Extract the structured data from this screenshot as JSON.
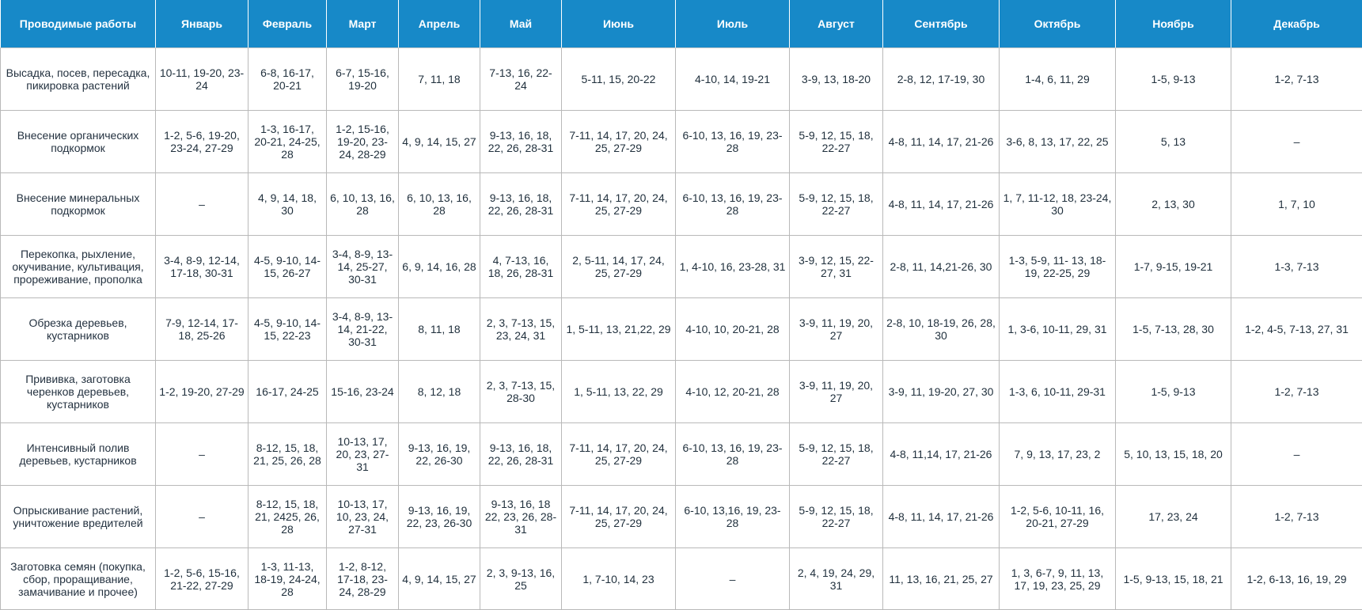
{
  "colors": {
    "header_bg": "#1789c8",
    "header_text": "#ffffff",
    "cell_text": "#1f2f3c",
    "grid": "#b9b9b9"
  },
  "table": {
    "headers": [
      "Проводимые работы",
      "Январь",
      "Февраль",
      "Март",
      "Апрель",
      "Май",
      "Июнь",
      "Июль",
      "Август",
      "Сентябрь",
      "Октябрь",
      "Ноябрь",
      "Декабрь"
    ],
    "rows": [
      [
        "Высадка, посев, пересадка, пикировка растений",
        "10-11, 19-20, 23-24",
        "6-8, 16-17, 20-21",
        "6-7, 15-16, 19-20",
        "7, 11, 18",
        "7-13, 16, 22-24",
        "5-11, 15, 20-22",
        "4-10, 14, 19-21",
        "3-9, 13, 18-20",
        "2-8, 12, 17-19, 30",
        "1-4, 6, 11, 29",
        "1-5, 9-13",
        "1-2, 7-13"
      ],
      [
        "Внесение органических подкормок",
        "1-2, 5-6, 19-20, 23-24, 27-29",
        "1-3, 16-17, 20-21, 24-25, 28",
        "1-2, 15-16, 19-20, 23-24, 28-29",
        "4, 9, 14, 15, 27",
        "9-13, 16, 18, 22, 26, 28-31",
        "7-11, 14, 17, 20, 24, 25, 27-29",
        "6-10, 13, 16, 19, 23-28",
        "5-9, 12, 15, 18, 22-27",
        "4-8, 11, 14, 17, 21-26",
        "3-6, 8, 13, 17, 22, 25",
        "5, 13",
        "–"
      ],
      [
        "Внесение минеральных подкормок",
        "–",
        "4, 9, 14, 18, 30",
        "6, 10, 13, 16, 28",
        "6, 10, 13, 16, 28",
        "9-13, 16, 18, 22, 26, 28-31",
        "7-11, 14, 17, 20, 24, 25, 27-29",
        "6-10, 13, 16, 19, 23-28",
        "5-9, 12, 15, 18, 22-27",
        "4-8, 11, 14, 17, 21-26",
        "1, 7, 11-12, 18, 23-24, 30",
        "2, 13, 30",
        "1, 7, 10"
      ],
      [
        "Перекопка, рыхление, окучивание, культивация, прореживание, прополка",
        "3-4, 8-9, 12-14, 17-18, 30-31",
        "4-5, 9-10, 14-15, 26-27",
        "3-4, 8-9, 13-14, 25-27, 30-31",
        "6, 9, 14, 16, 28",
        "4, 7-13, 16, 18, 26, 28-31",
        "2, 5-11, 14, 17, 24, 25, 27-29",
        "1, 4-10, 16, 23-28, 31",
        "3-9, 12, 15, 22-27, 31",
        "2-8, 11, 14,21-26, 30",
        "1-3, 5-9, 11- 13, 18-19, 22-25, 29",
        "1-7, 9-15, 19-21",
        "1-3, 7-13"
      ],
      [
        "Обрезка деревьев, кустарников",
        "7-9, 12-14, 17-18, 25-26",
        "4-5, 9-10, 14-15, 22-23",
        "3-4, 8-9, 13-14, 21-22, 30-31",
        "8, 11, 18",
        "2, 3, 7-13, 15, 23, 24, 31",
        "1, 5-11, 13, 21,22, 29",
        "4-10, 10, 20-21, 28",
        "3-9, 11, 19, 20, 27",
        "2-8, 10, 18-19, 26, 28, 30",
        "1, 3-6, 10-11, 29, 31",
        "1-5, 7-13, 28, 30",
        "1-2, 4-5, 7-13, 27, 31"
      ],
      [
        "Прививка, заготовка черенков деревьев, кустарников",
        "1-2, 19-20, 27-29",
        "16-17, 24-25",
        "15-16, 23-24",
        "8, 12, 18",
        "2, 3, 7-13, 15, 28-30",
        "1, 5-11, 13, 22, 29",
        "4-10, 12, 20-21, 28",
        "3-9, 11, 19, 20, 27",
        "3-9, 11, 19-20, 27, 30",
        "1-3, 6, 10-11, 29-31",
        "1-5, 9-13",
        "1-2, 7-13"
      ],
      [
        "Интенсивный полив деревьев, кустарников",
        "–",
        "8-12, 15, 18, 21, 25, 26, 28",
        "10-13, 17, 20, 23, 27-31",
        "9-13, 16, 19, 22, 26-30",
        "9-13, 16, 18, 22, 26, 28-31",
        "7-11, 14, 17, 20, 24, 25, 27-29",
        "6-10, 13, 16, 19, 23-28",
        "5-9, 12, 15, 18, 22-27",
        "4-8, 11,14, 17, 21-26",
        "7, 9, 13, 17, 23, 2",
        "5, 10, 13, 15, 18, 20",
        "–"
      ],
      [
        "Опрыскивание растений, уничтожение вредителей",
        "–",
        "8-12, 15, 18, 21, 2425, 26, 28",
        "10-13, 17, 10, 23, 24, 27-31",
        "9-13, 16, 19, 22, 23, 26-30",
        "9-13, 16, 18 22, 23, 26, 28-31",
        "7-11, 14, 17, 20, 24, 25, 27-29",
        "6-10, 13,16, 19, 23-28",
        "5-9, 12, 15, 18, 22-27",
        "4-8, 11, 14, 17, 21-26",
        "1-2, 5-6, 10-11, 16, 20-21, 27-29",
        "17, 23, 24",
        "1-2, 7-13"
      ],
      [
        "Заготовка семян (покупка, сбор, проращивание, замачивание и прочее)",
        "1-2, 5-6, 15-16, 21-22, 27-29",
        "1-3, 11-13, 18-19, 24-24, 28",
        "1-2, 8-12, 17-18, 23-24, 28-29",
        "4, 9, 14, 15, 27",
        "2, 3, 9-13, 16, 25",
        "1, 7-10, 14, 23",
        "–",
        "2, 4, 19, 24, 29, 31",
        "11, 13, 16, 21, 25, 27",
        "1, 3, 6-7, 9, 11, 13, 17, 19, 23, 25, 29",
        "1-5, 9-13, 15, 18, 21",
        "1-2, 6-13, 16, 19, 29"
      ]
    ]
  }
}
